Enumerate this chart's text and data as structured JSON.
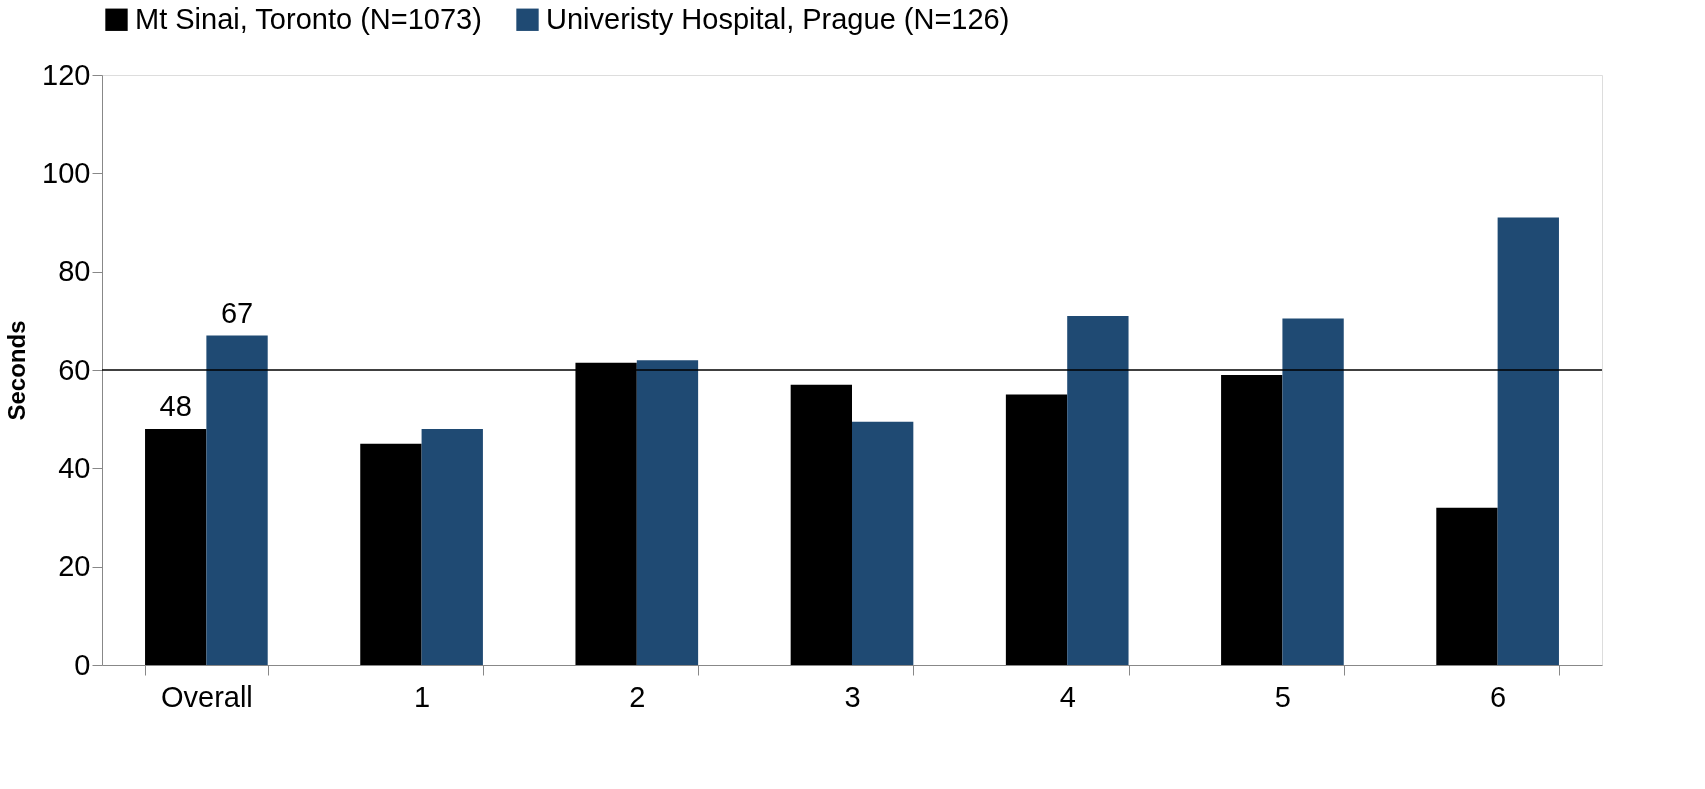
{
  "chart_data": {
    "type": "bar",
    "ylabel": "Seconds",
    "categories": [
      "Overall",
      "1",
      "2",
      "3",
      "4",
      "5",
      "6"
    ],
    "series": [
      {
        "name": "Mt Sinai, Toronto (N=1073)",
        "color": "#000000",
        "values": [
          48,
          45,
          61.5,
          57,
          55,
          59,
          32
        ],
        "value_labels": [
          "48",
          null,
          null,
          null,
          null,
          null,
          null
        ]
      },
      {
        "name": "Univeristy Hospital, Prague (N=126)",
        "color": "#1f4a73",
        "values": [
          67,
          48,
          62,
          49.5,
          71,
          70.5,
          91
        ],
        "value_labels": [
          "67",
          null,
          null,
          null,
          null,
          null,
          null
        ]
      }
    ],
    "ylim": [
      0,
      120
    ],
    "yticks": [
      0,
      20,
      40,
      60,
      80,
      100,
      120
    ],
    "ref_lines": [
      {
        "axis": "y",
        "value": 60,
        "color": "#000000"
      }
    ],
    "grid": false,
    "legend": "top left"
  }
}
